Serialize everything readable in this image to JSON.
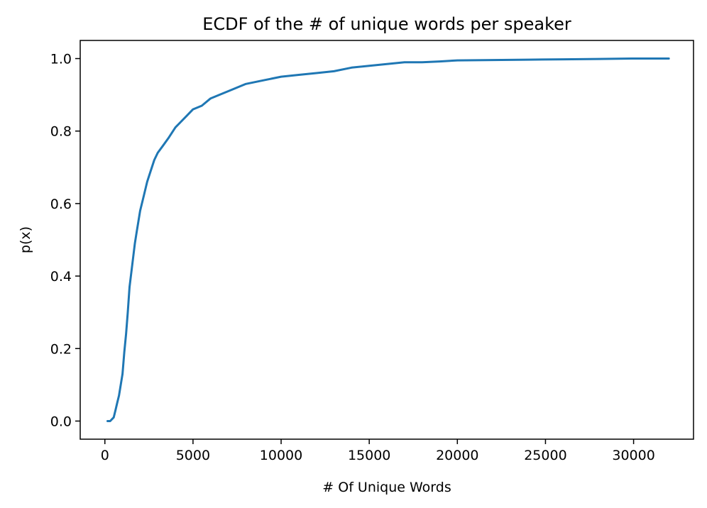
{
  "chart_data": {
    "type": "line",
    "title": "ECDF of the # of unique words per speaker",
    "xlabel": "# Of Unique Words",
    "ylabel": "p(x)",
    "xlim": [
      -1400,
      33400
    ],
    "ylim": [
      -0.05,
      1.05
    ],
    "xticks": [
      0,
      5000,
      10000,
      15000,
      20000,
      25000,
      30000
    ],
    "xtick_labels": [
      "0",
      "5000",
      "10000",
      "15000",
      "20000",
      "25000",
      "30000"
    ],
    "yticks": [
      0.0,
      0.2,
      0.4,
      0.6,
      0.8,
      1.0
    ],
    "ytick_labels": [
      "0.0",
      "0.2",
      "0.4",
      "0.6",
      "0.8",
      "1.0"
    ],
    "grid": false,
    "series": [
      {
        "color": "#1f77b4",
        "x": [
          150,
          300,
          500,
          600,
          700,
          800,
          900,
          1000,
          1100,
          1200,
          1300,
          1400,
          1500,
          1600,
          1700,
          1800,
          1900,
          2000,
          2200,
          2400,
          2600,
          2800,
          3000,
          3300,
          3600,
          4000,
          4300,
          4600,
          5000,
          5500,
          6000,
          6500,
          7000,
          7500,
          8000,
          9000,
          10000,
          11000,
          12000,
          13000,
          14000,
          15000,
          16000,
          17000,
          18000,
          19000,
          20000,
          22000,
          24000,
          26000,
          28000,
          30000,
          32000
        ],
        "y": [
          0.0,
          0.0,
          0.01,
          0.03,
          0.05,
          0.07,
          0.1,
          0.13,
          0.19,
          0.24,
          0.3,
          0.37,
          0.41,
          0.45,
          0.49,
          0.52,
          0.55,
          0.58,
          0.62,
          0.66,
          0.69,
          0.72,
          0.74,
          0.76,
          0.78,
          0.81,
          0.825,
          0.84,
          0.86,
          0.87,
          0.89,
          0.9,
          0.91,
          0.92,
          0.93,
          0.94,
          0.95,
          0.955,
          0.96,
          0.965,
          0.975,
          0.98,
          0.985,
          0.99,
          0.99,
          0.992,
          0.995,
          0.996,
          0.997,
          0.998,
          0.999,
          1.0,
          1.0
        ]
      }
    ]
  }
}
